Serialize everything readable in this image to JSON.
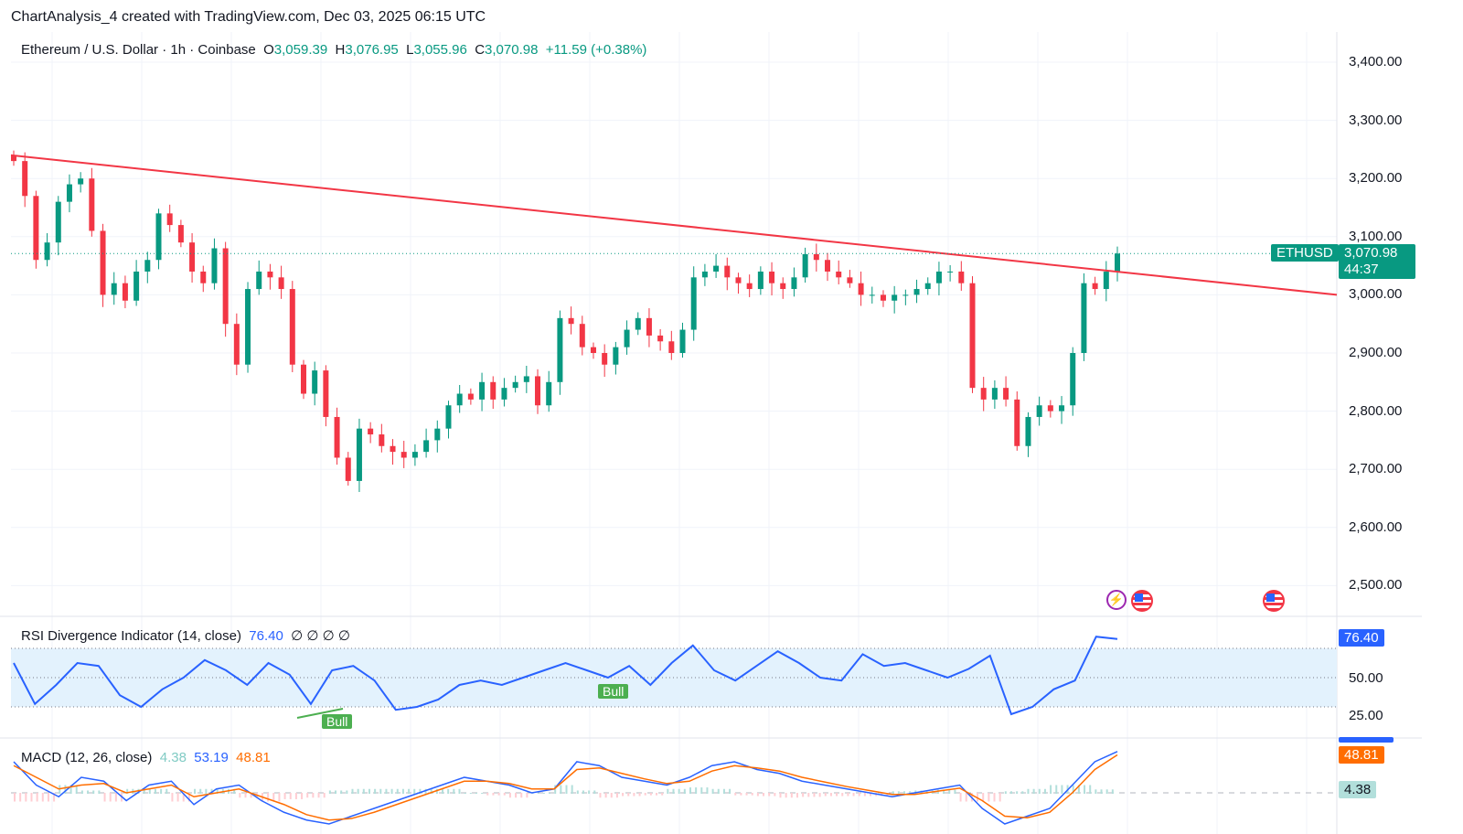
{
  "title": "ChartAnalysis_4 created with TradingView.com, Dec 03, 2025 06:15 UTC",
  "legend": {
    "symbol": "Ethereum / U.S. Dollar · 1h · Coinbase",
    "o_label": "O",
    "o": "3,059.39",
    "h_label": "H",
    "h": "3,076.95",
    "l_label": "L",
    "l": "3,055.96",
    "c_label": "C",
    "c": "3,070.98",
    "change": "+11.59 (+0.38%)"
  },
  "price_tag": {
    "ticker": "ETHUSD",
    "price": "3,070.98",
    "countdown": "44:37"
  },
  "rsi": {
    "label": "RSI Divergence Indicator (14, close)",
    "value": "76.40",
    "extras": "∅ ∅ ∅ ∅",
    "ticks": [
      "50.00",
      "25.00"
    ],
    "bull_label": "Bull"
  },
  "macd": {
    "label": "MACD (12, 26, close)",
    "hist": "4.38",
    "macd": "53.19",
    "signal": "48.81"
  },
  "colors": {
    "up": "#089981",
    "down": "#f23645",
    "trendline": "#f23645",
    "rsi": "#2962ff",
    "macd": "#2962ff",
    "signal": "#ff6d00",
    "band": "#e3f2fd"
  },
  "chart_data": {
    "type": "candlestick",
    "interval": "1h",
    "ylim": [
      2450,
      3450
    ],
    "yticks": [
      "3,400.00",
      "3,300.00",
      "3,200.00",
      "3,100.00",
      "3,000.00",
      "2,900.00",
      "2,800.00",
      "2,700.00",
      "2,600.00",
      "2,500.00"
    ],
    "yticks_values": [
      3400,
      3300,
      3200,
      3100,
      3000,
      2900,
      2800,
      2700,
      2600,
      2500
    ],
    "closes": [
      3230,
      3170,
      3060,
      3090,
      3160,
      3190,
      3200,
      3110,
      3000,
      3020,
      2990,
      3040,
      3060,
      3140,
      3120,
      3090,
      3040,
      3020,
      3080,
      2950,
      2880,
      3010,
      3040,
      3030,
      3010,
      2880,
      2830,
      2870,
      2790,
      2720,
      2680,
      2770,
      2760,
      2740,
      2730,
      2720,
      2730,
      2750,
      2770,
      2810,
      2830,
      2820,
      2850,
      2820,
      2840,
      2850,
      2860,
      2810,
      2850,
      2960,
      2950,
      2910,
      2900,
      2880,
      2910,
      2940,
      2960,
      2930,
      2920,
      2900,
      2940,
      3030,
      3040,
      3050,
      3030,
      3020,
      3010,
      3040,
      3020,
      3010,
      3030,
      3070,
      3060,
      3040,
      3030,
      3020,
      3000,
      3000,
      2990,
      3000,
      3000,
      3010,
      3020,
      3040,
      3040,
      3020,
      2840,
      2820,
      2840,
      2820,
      2740,
      2790,
      2810,
      2800,
      2810,
      2900,
      3020,
      3010,
      3040,
      3070.98
    ],
    "trendline": {
      "start": 3240,
      "end": 3000
    },
    "rsi_values": [
      60,
      32,
      45,
      60,
      58,
      38,
      30,
      42,
      50,
      62,
      55,
      45,
      60,
      52,
      32,
      55,
      58,
      48,
      28,
      30,
      35,
      45,
      48,
      45,
      50,
      55,
      60,
      55,
      50,
      58,
      45,
      60,
      72,
      55,
      48,
      58,
      68,
      60,
      50,
      48,
      66,
      58,
      60,
      55,
      50,
      56,
      65,
      25,
      30,
      42,
      48,
      78,
      76.4
    ],
    "macd_values": [
      40,
      10,
      -5,
      20,
      15,
      -10,
      10,
      15,
      -15,
      5,
      10,
      -10,
      -25,
      -35,
      -40,
      -30,
      -20,
      -10,
      0,
      10,
      20,
      15,
      10,
      0,
      5,
      40,
      35,
      20,
      15,
      10,
      20,
      35,
      40,
      30,
      25,
      15,
      10,
      5,
      0,
      -5,
      0,
      5,
      10,
      -20,
      -40,
      -30,
      -20,
      10,
      40,
      53.19
    ],
    "signal_values": [
      35,
      20,
      5,
      10,
      12,
      0,
      5,
      10,
      -5,
      0,
      5,
      -5,
      -15,
      -28,
      -35,
      -33,
      -25,
      -15,
      -5,
      5,
      15,
      15,
      12,
      5,
      5,
      30,
      32,
      25,
      18,
      12,
      15,
      28,
      35,
      32,
      28,
      20,
      14,
      8,
      3,
      -2,
      -2,
      2,
      6,
      -10,
      -30,
      -32,
      -25,
      0,
      30,
      48.81
    ]
  }
}
